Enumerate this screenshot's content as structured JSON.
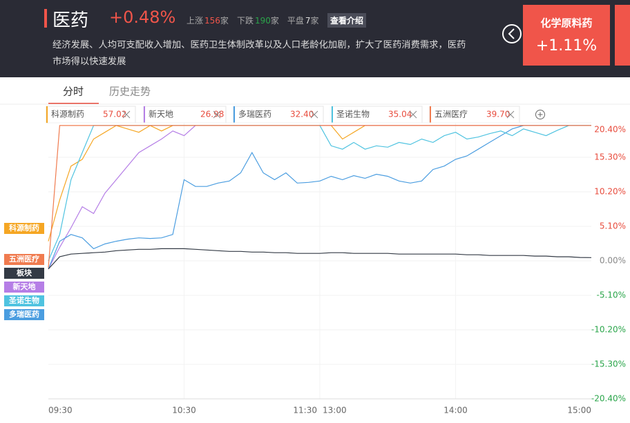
{
  "header": {
    "title": "医药",
    "change": "+0.48%",
    "stats": [
      {
        "label": "上涨",
        "count": 156,
        "unit": "家"
      },
      {
        "label": "下跌",
        "count": 190,
        "unit": "家"
      },
      {
        "label": "平盘",
        "count": 7,
        "unit": "家"
      }
    ],
    "button": "查看介绍",
    "description": "经济发展、人均可支配收入增加、医药卫生体制改革以及人口老龄化加剧，扩大了医药消费需求，医药市场得以快速发展",
    "card": {
      "name": "化学原料药",
      "change": "+1.11%"
    }
  },
  "tabs": [
    "分时",
    "历史走势"
  ],
  "chart_data": {
    "type": "line",
    "categories": [
      "09:30",
      "09:35",
      "09:40",
      "09:45",
      "09:50",
      "09:55",
      "10:00",
      "10:05",
      "10:10",
      "10:15",
      "10:20",
      "10:25",
      "10:30",
      "10:35",
      "10:40",
      "10:45",
      "10:50",
      "10:55",
      "11:00",
      "11:05",
      "11:10",
      "11:15",
      "11:20",
      "11:25",
      "11:30",
      "13:05",
      "13:10",
      "13:15",
      "13:20",
      "13:25",
      "13:30",
      "13:35",
      "13:40",
      "13:45",
      "13:50",
      "13:55",
      "14:00",
      "14:05",
      "14:10",
      "14:15",
      "14:20",
      "14:25",
      "14:30",
      "14:35",
      "14:40",
      "14:45",
      "14:50",
      "14:55",
      "15:00"
    ],
    "series": [
      {
        "name": "科源制药",
        "price": "57.02",
        "color": "#f5a623",
        "values": [
          2.9,
          9,
          14,
          15,
          18,
          19,
          20,
          19.5,
          19,
          20,
          19.2,
          20,
          20,
          20,
          20,
          20,
          20,
          20,
          20,
          20,
          20,
          20,
          20,
          20,
          20,
          20,
          18,
          19,
          20,
          20,
          20,
          20,
          20,
          20,
          20,
          20,
          20,
          20,
          20,
          20,
          20,
          20,
          20,
          20,
          20,
          20,
          20,
          20,
          20
        ]
      },
      {
        "name": "新天地",
        "price": "26.98",
        "color": "#b57ee6",
        "values": [
          -1.2,
          2,
          4.9,
          8,
          7,
          10,
          12,
          14,
          16,
          17,
          18,
          19.2,
          18.5,
          20,
          20,
          20,
          20,
          20,
          20,
          20,
          20,
          20,
          20,
          20,
          20,
          20,
          20,
          20,
          20,
          20,
          20,
          20,
          20,
          20,
          20,
          20,
          20,
          20,
          20,
          20,
          20,
          20,
          20,
          20,
          20,
          20,
          20,
          20,
          20
        ]
      },
      {
        "name": "多瑞医药",
        "price": "32.40",
        "color": "#4a9de0",
        "values": [
          -1.2,
          2.9,
          3.9,
          3.4,
          1.8,
          2.5,
          2.9,
          3.2,
          3.4,
          3.3,
          3.4,
          3.9,
          12,
          11,
          11,
          11.5,
          11.8,
          13,
          16,
          13,
          12,
          13,
          11.5,
          11.6,
          11.8,
          12.5,
          12,
          12.6,
          12.2,
          12.8,
          12.5,
          11.8,
          11.5,
          11.8,
          13.5,
          14,
          15,
          15.5,
          16.5,
          17.5,
          18.5,
          19.5,
          20,
          20,
          20,
          20,
          20,
          20,
          20
        ]
      },
      {
        "name": "圣诺生物",
        "price": "35.04",
        "color": "#4fc3e0",
        "values": [
          0,
          3.9,
          12,
          16,
          20,
          20,
          20,
          20,
          20,
          20,
          20,
          20,
          20,
          20,
          20,
          20,
          20,
          20,
          20,
          20,
          20,
          20,
          20,
          20,
          20,
          17,
          16.5,
          17.5,
          16.5,
          17,
          16.8,
          17.5,
          17.2,
          18,
          17.5,
          18.5,
          19,
          18,
          18.3,
          18.8,
          19.2,
          18.5,
          19.5,
          19,
          18.5,
          19.3,
          20,
          20,
          20
        ]
      },
      {
        "name": "五洲医疗",
        "price": "39.70",
        "color": "#f07b4f",
        "values": [
          -1,
          20,
          20,
          20,
          20,
          20,
          20,
          20,
          20,
          20,
          20,
          20,
          20,
          20,
          20,
          20,
          20,
          20,
          20,
          20,
          20,
          20,
          20,
          20,
          20,
          20,
          20,
          20,
          20,
          20,
          20,
          20,
          20,
          20,
          20,
          20,
          20,
          20,
          20,
          20,
          20,
          20,
          20,
          20,
          20,
          20,
          20,
          20,
          20
        ]
      },
      {
        "name": "板块",
        "color": "#333a45",
        "values": [
          -1.2,
          0.6,
          1.0,
          1.1,
          1.2,
          1.3,
          1.5,
          1.6,
          1.7,
          1.7,
          1.8,
          1.8,
          1.8,
          1.7,
          1.6,
          1.5,
          1.4,
          1.4,
          1.3,
          1.3,
          1.2,
          1.2,
          1.1,
          1.1,
          1.1,
          1.2,
          1.2,
          1.1,
          1.1,
          1.1,
          1.1,
          1.0,
          1.0,
          1.0,
          1.0,
          1.0,
          1.0,
          0.9,
          0.9,
          0.8,
          0.8,
          0.8,
          0.8,
          0.7,
          0.7,
          0.6,
          0.6,
          0.5,
          0.48
        ]
      }
    ],
    "ylim": [
      -20.4,
      20.4
    ],
    "yticks": [
      {
        "value": 20.4,
        "label": "20.40%"
      },
      {
        "value": 15.3,
        "label": "15.30%"
      },
      {
        "value": 10.2,
        "label": "10.20%"
      },
      {
        "value": 5.1,
        "label": "5.10%"
      },
      {
        "value": 0,
        "label": "0.00%"
      },
      {
        "value": -5.1,
        "label": "-5.10%"
      },
      {
        "value": -10.2,
        "label": "-10.20%"
      },
      {
        "value": -15.3,
        "label": "-15.30%"
      },
      {
        "value": -20.4,
        "label": "-20.40%"
      }
    ],
    "xticks": [
      "09:30",
      "10:30",
      "11:30",
      "13:00",
      "14:00",
      "15:00"
    ],
    "grid": true
  }
}
